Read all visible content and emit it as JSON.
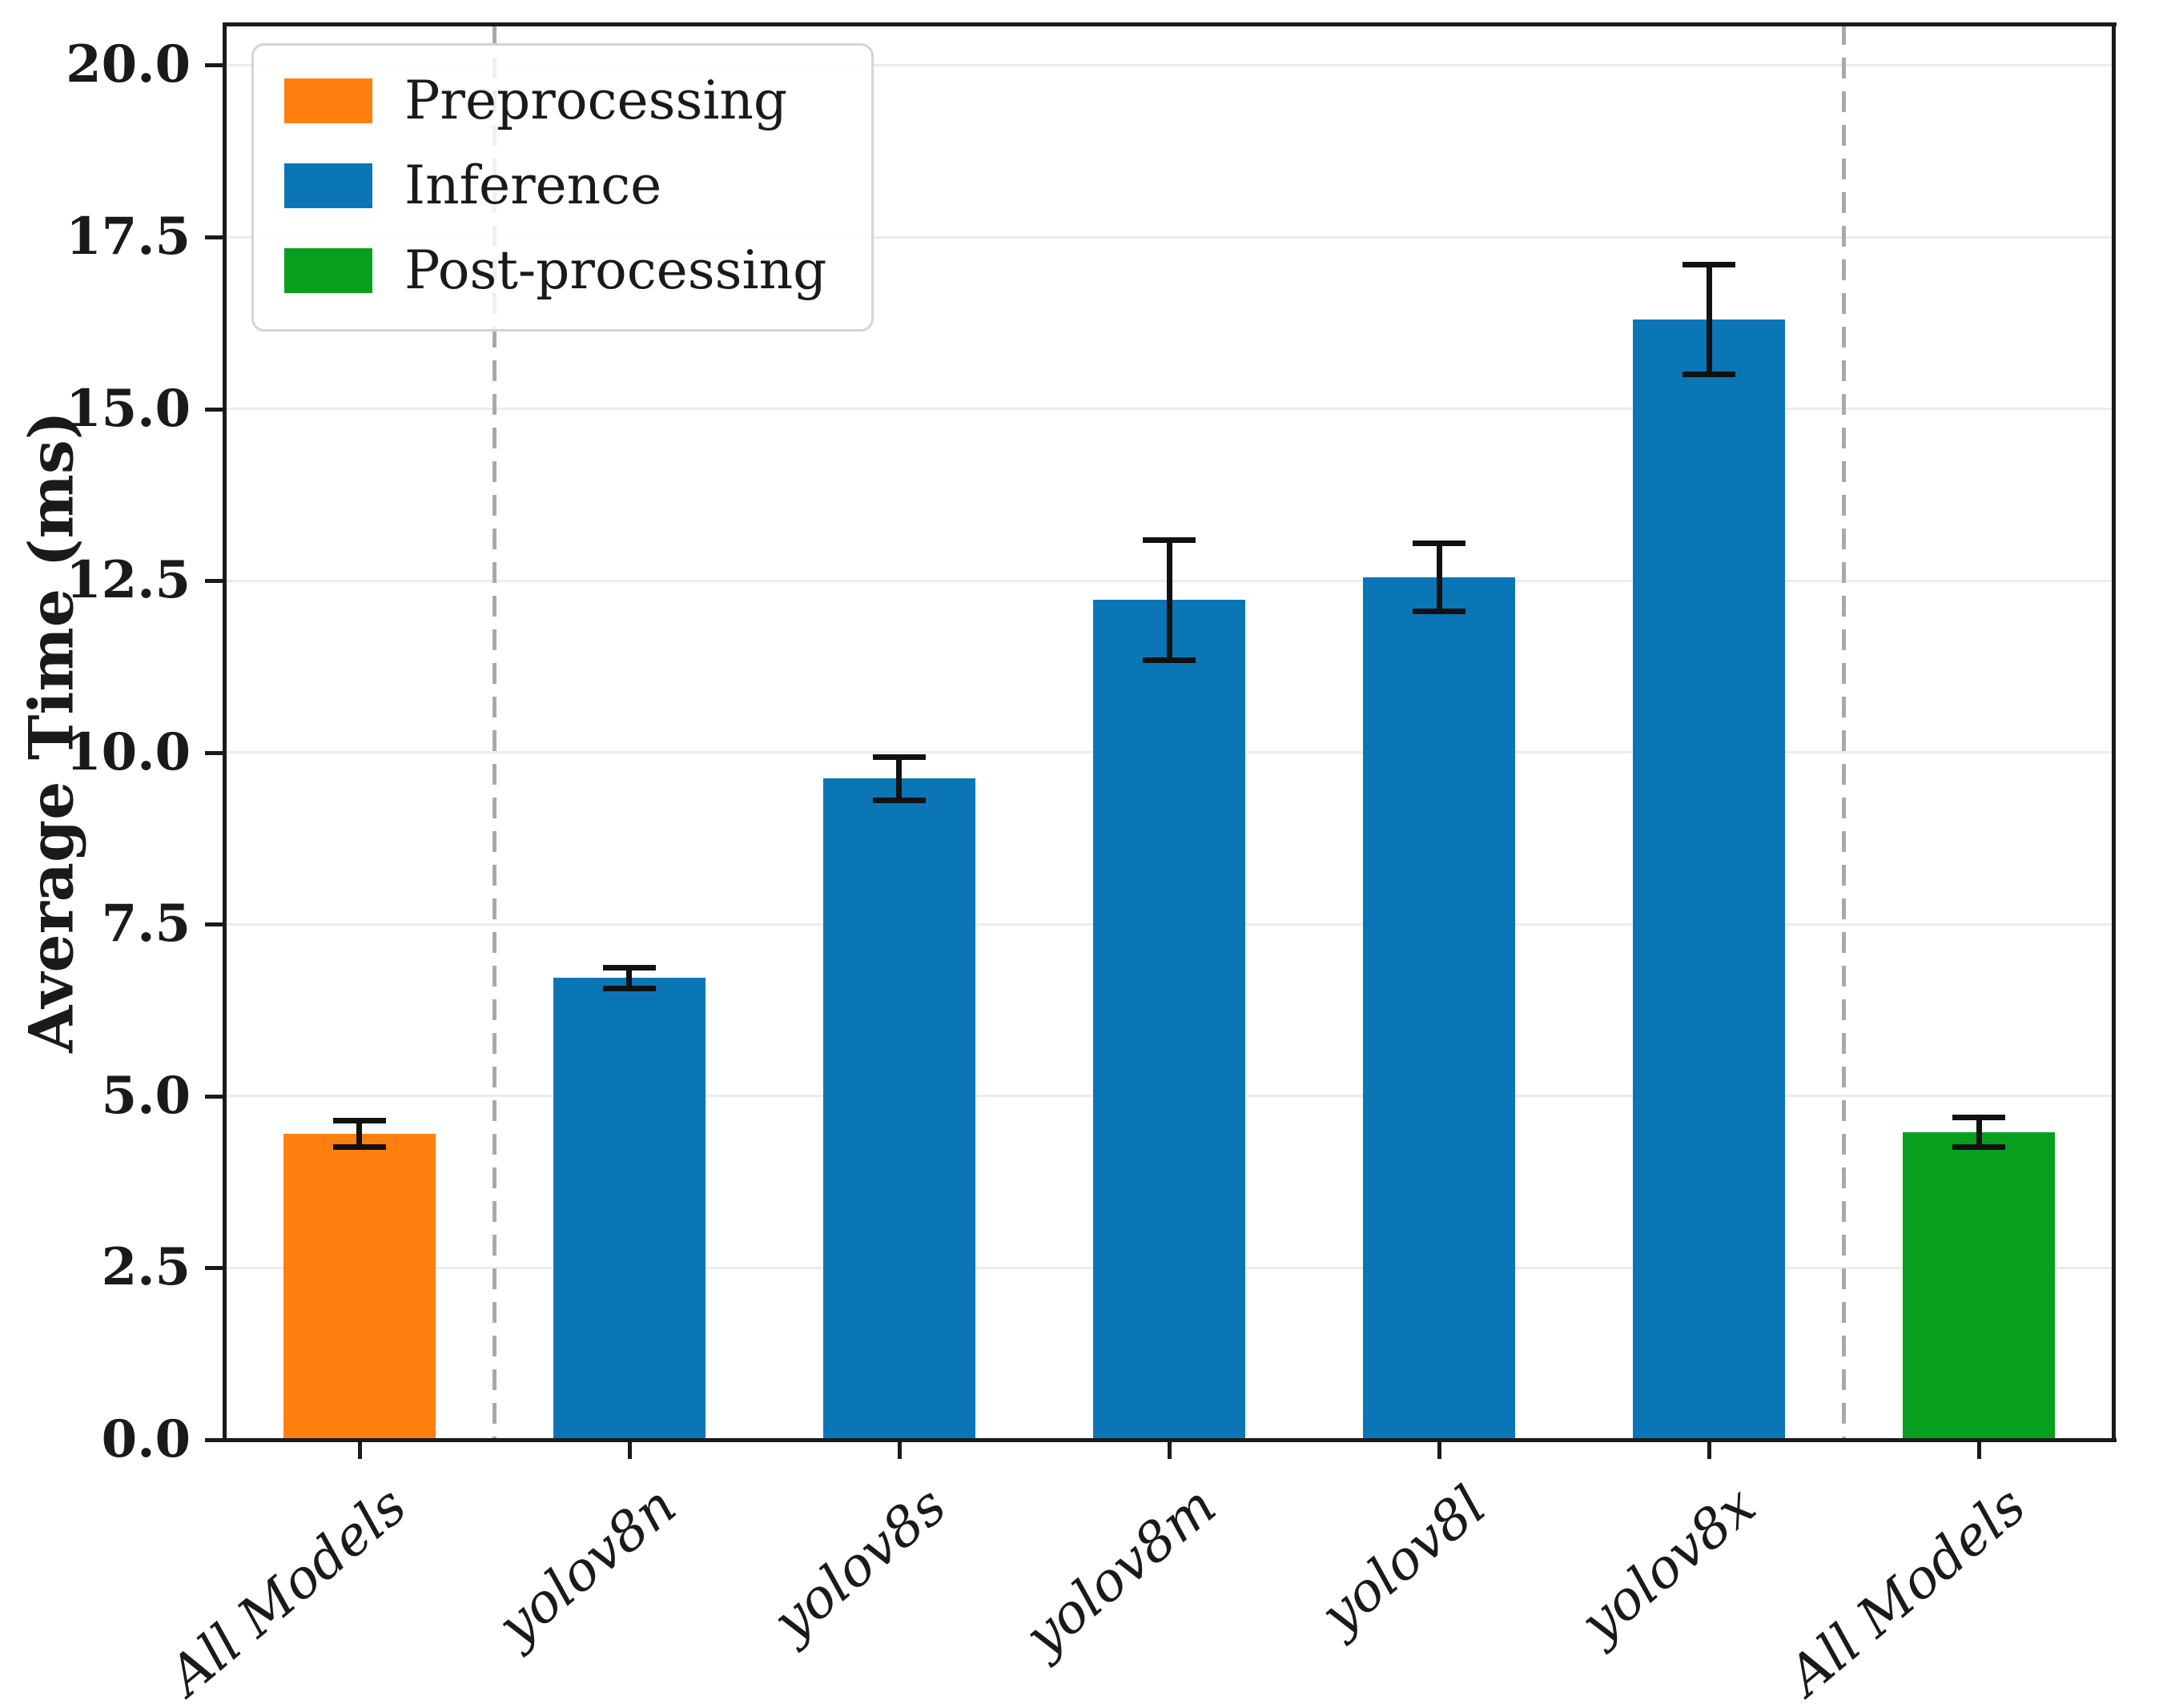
{
  "figure": {
    "background": "#ffffff"
  },
  "chart_data": {
    "type": "bar",
    "title": "",
    "xlabel": "",
    "ylabel": "Average Time (ms)",
    "ylim": [
      0,
      20.6
    ],
    "grid": "horizontal",
    "ytick_labels": [
      "0.0",
      "2.5",
      "5.0",
      "7.5",
      "10.0",
      "12.5",
      "15.0",
      "17.5",
      "20.0"
    ],
    "categories": [
      "All Models",
      "yolov8n",
      "yolov8s",
      "yolov8m",
      "yolov8l",
      "yolov8x",
      "All Models"
    ],
    "bars": [
      {
        "label": "All Models",
        "stage": "Preprocessing",
        "value": 4.45,
        "error": 0.2,
        "color": "#ff7f0e"
      },
      {
        "label": "yolov8n",
        "stage": "Inference",
        "value": 6.72,
        "error": 0.16,
        "color": "#0a76b6"
      },
      {
        "label": "yolov8s",
        "stage": "Inference",
        "value": 9.62,
        "error": 0.32,
        "color": "#0a76b6"
      },
      {
        "label": "yolov8m",
        "stage": "Inference",
        "value": 12.22,
        "error": 0.88,
        "color": "#0a76b6"
      },
      {
        "label": "yolov8l",
        "stage": "Inference",
        "value": 12.55,
        "error": 0.5,
        "color": "#0a76b6"
      },
      {
        "label": "yolov8x",
        "stage": "Inference",
        "value": 16.3,
        "error": 0.8,
        "color": "#0a76b6"
      },
      {
        "label": "All Models",
        "stage": "Post-processing",
        "value": 4.47,
        "error": 0.22,
        "color": "#06a01e"
      }
    ],
    "error_bar_color": "#111111",
    "separators_after_category_index": [
      0,
      5
    ],
    "legend": {
      "position": "upper-left",
      "items": [
        {
          "label": "Preprocessing",
          "color": "#ff7f0e"
        },
        {
          "label": "Inference",
          "color": "#0a76b6"
        },
        {
          "label": "Post-processing",
          "color": "#06a01e"
        }
      ]
    }
  }
}
